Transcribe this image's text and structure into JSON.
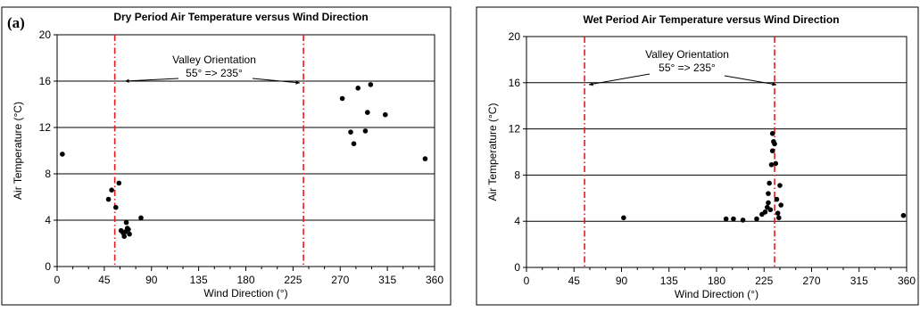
{
  "chart_data": [
    {
      "type": "scatter",
      "panel_label": "(a)",
      "title": "Dry Period Air Temperature versus Wind Direction",
      "xlabel": "Wind Direction (°)",
      "ylabel": "Air Temperature (°C)",
      "xlim": [
        0,
        360
      ],
      "ylim": [
        0,
        20
      ],
      "xticks": [
        "0",
        "45",
        "90",
        "135",
        "180",
        "225",
        "270",
        "315",
        "360"
      ],
      "yticks": [
        "0",
        "4",
        "8",
        "12",
        "16",
        "20"
      ],
      "grid": "horizontal",
      "reference_lines": [
        55,
        235
      ],
      "annotation": {
        "line1": "Valley Orientation",
        "line2": "55° => 235°"
      },
      "points": [
        {
          "x": 5,
          "y": 9.7
        },
        {
          "x": 49,
          "y": 5.8
        },
        {
          "x": 52,
          "y": 6.6
        },
        {
          "x": 56,
          "y": 5.1
        },
        {
          "x": 59,
          "y": 7.2
        },
        {
          "x": 61,
          "y": 3.1
        },
        {
          "x": 63,
          "y": 2.9
        },
        {
          "x": 64,
          "y": 2.6
        },
        {
          "x": 65,
          "y": 3.0
        },
        {
          "x": 66,
          "y": 3.8
        },
        {
          "x": 67,
          "y": 3.3
        },
        {
          "x": 68,
          "y": 3.2
        },
        {
          "x": 69,
          "y": 2.8
        },
        {
          "x": 80,
          "y": 4.2
        },
        {
          "x": 272,
          "y": 14.5
        },
        {
          "x": 280,
          "y": 11.6
        },
        {
          "x": 283,
          "y": 10.6
        },
        {
          "x": 287,
          "y": 15.4
        },
        {
          "x": 294,
          "y": 11.7
        },
        {
          "x": 296,
          "y": 13.3
        },
        {
          "x": 299,
          "y": 15.7
        },
        {
          "x": 313,
          "y": 13.1
        },
        {
          "x": 351,
          "y": 9.3
        }
      ]
    },
    {
      "type": "scatter",
      "title": "Wet Period Air Temperature versus Wind Direction",
      "xlabel": "Wind Direction (°)",
      "ylabel": "Air Temperature (°C)",
      "xlim": [
        0,
        360
      ],
      "ylim": [
        0,
        20
      ],
      "xticks": [
        "0",
        "45",
        "90",
        "135",
        "180",
        "225",
        "270",
        "315",
        "360"
      ],
      "yticks": [
        "0",
        "4",
        "8",
        "12",
        "16",
        "20"
      ],
      "grid": "horizontal",
      "reference_lines": [
        55,
        235
      ],
      "annotation": {
        "line1": "Valley Orientation",
        "line2": "55° => 235°"
      },
      "points": [
        {
          "x": 92,
          "y": 4.3
        },
        {
          "x": 189,
          "y": 4.2
        },
        {
          "x": 196,
          "y": 4.2
        },
        {
          "x": 205,
          "y": 4.1
        },
        {
          "x": 218,
          "y": 4.2
        },
        {
          "x": 223,
          "y": 4.6
        },
        {
          "x": 226,
          "y": 4.8
        },
        {
          "x": 228,
          "y": 5.2
        },
        {
          "x": 229,
          "y": 5.6
        },
        {
          "x": 229,
          "y": 6.4
        },
        {
          "x": 230,
          "y": 7.3
        },
        {
          "x": 231,
          "y": 5.0
        },
        {
          "x": 232,
          "y": 8.9
        },
        {
          "x": 233,
          "y": 10.1
        },
        {
          "x": 233,
          "y": 11.6
        },
        {
          "x": 234,
          "y": 10.9
        },
        {
          "x": 235,
          "y": 10.7
        },
        {
          "x": 236,
          "y": 9.0
        },
        {
          "x": 237,
          "y": 5.9
        },
        {
          "x": 238,
          "y": 4.7
        },
        {
          "x": 239,
          "y": 4.3
        },
        {
          "x": 240,
          "y": 7.1
        },
        {
          "x": 241,
          "y": 5.4
        },
        {
          "x": 357,
          "y": 4.5
        }
      ]
    }
  ]
}
